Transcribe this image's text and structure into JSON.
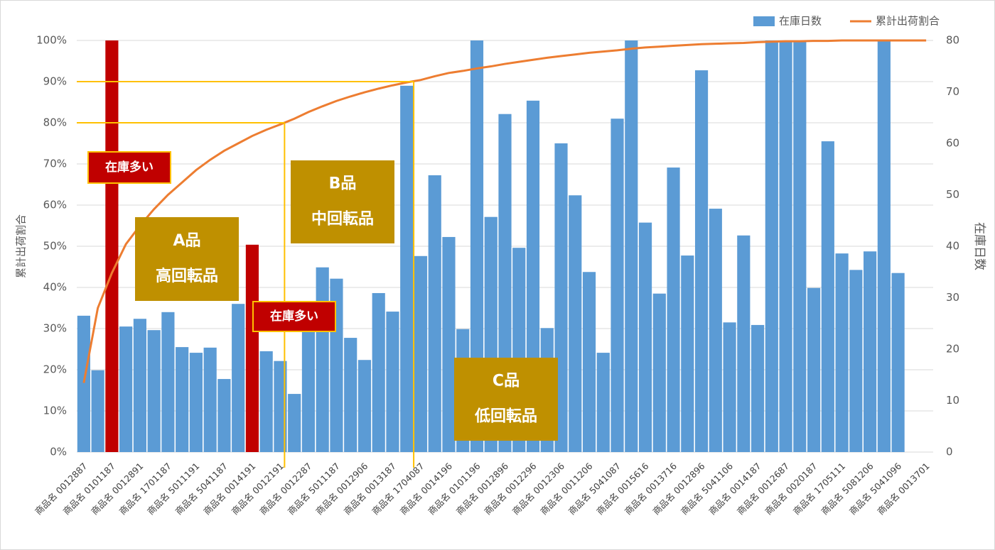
{
  "chart_data": {
    "type": "pareto",
    "categories": [
      "商品名 0012887",
      null,
      "商品名 0101187",
      null,
      "商品名 0012891",
      null,
      "商品名 1701187",
      null,
      "商品名 5011191",
      null,
      "商品名 5041187",
      null,
      "商品名 0014191",
      null,
      "商品名 0012191",
      null,
      "商品名 0012287",
      null,
      "商品名 5011187",
      null,
      "商品名 0012906",
      null,
      "商品名 0013187",
      null,
      "商品名 1704087",
      null,
      "商品名 0014196",
      null,
      "商品名 0101196",
      null,
      "商品名 0012896",
      null,
      "商品名 0012296",
      null,
      "商品名 0012306",
      null,
      "商品名 0011206",
      null,
      "商品名 5041087",
      null,
      "商品名 0015616",
      null,
      "商品名 0013716",
      null,
      "商品名 0012896",
      null,
      "商品名 5041106",
      null,
      "商品名 0014187",
      null,
      "商品名 0012687",
      null,
      "商品名 0020187",
      null,
      "商品名 1705111",
      null,
      "商品名 5081206",
      null,
      "商品名 5041096",
      null,
      "商品名 0013701"
    ],
    "series": [
      {
        "name": "在庫日数",
        "type": "bar",
        "axis": "y2",
        "color": "#5b9bd5",
        "highlight_indices": [
          2,
          12
        ],
        "highlight_color": "#c00000",
        "values": [
          26.5,
          15.9,
          80,
          24.4,
          25.9,
          23.7,
          27.2,
          20.4,
          19.3,
          20.3,
          14.2,
          28.8,
          40.3,
          19.6,
          17.7,
          11.3,
          24.5,
          35.9,
          33.7,
          22.2,
          17.9,
          30.9,
          27.3,
          71.2,
          38.1,
          53.8,
          41.8,
          23.9,
          80,
          45.7,
          65.7,
          39.7,
          68.3,
          24.1,
          60,
          49.9,
          35,
          19.3,
          64.8,
          80,
          44.6,
          30.8,
          55.3,
          38.2,
          74.2,
          47.3,
          25.2,
          42.1,
          24.7,
          80,
          80,
          80,
          31.9,
          60.4,
          38.6,
          35.4,
          39,
          80,
          34.8,
          null,
          null
        ]
      },
      {
        "name": "累計出荷割合",
        "type": "line",
        "axis": "y",
        "color": "#ed7d31",
        "values": [
          16.8,
          35,
          43.5,
          50.5,
          55,
          59,
          62.5,
          65.5,
          68.5,
          71,
          73.2,
          75,
          76.8,
          78.3,
          79.6,
          81,
          82.6,
          84,
          85.3,
          86.4,
          87.4,
          88.3,
          89.1,
          89.8,
          90.4,
          91.3,
          92.1,
          92.6,
          93.2,
          93.7,
          94.3,
          94.8,
          95.3,
          95.8,
          96.2,
          96.6,
          97,
          97.3,
          97.6,
          98,
          98.3,
          98.5,
          98.7,
          98.9,
          99.1,
          99.2,
          99.3,
          99.4,
          99.6,
          99.7,
          99.8,
          99.8,
          99.9,
          99.9,
          100,
          100,
          100,
          100,
          100,
          100,
          100
        ]
      }
    ],
    "ylabel": "累計出荷割合",
    "y2label": "在庫日数",
    "ylim": [
      0,
      100
    ],
    "yticks": [
      {
        "value": 0,
        "label": "0%"
      },
      {
        "value": 10,
        "label": "10%"
      },
      {
        "value": 20,
        "label": "20%"
      },
      {
        "value": 30,
        "label": "30%"
      },
      {
        "value": 40,
        "label": "40%"
      },
      {
        "value": 50,
        "label": "50%"
      },
      {
        "value": 60,
        "label": "60%"
      },
      {
        "value": 70,
        "label": "70%"
      },
      {
        "value": 80,
        "label": "80%"
      },
      {
        "value": 90,
        "label": "90%"
      },
      {
        "value": 100,
        "label": "100%"
      }
    ],
    "y2lim": [
      0,
      80
    ],
    "y2ticks": [
      0,
      10,
      20,
      30,
      40,
      50,
      60,
      70,
      80
    ],
    "grid": true,
    "legend": "top-right",
    "reference_lines": [
      {
        "y": 80,
        "x": 14.8,
        "color": "#ffc000"
      },
      {
        "y": 90,
        "x": 24,
        "color": "#ffc000"
      }
    ],
    "annotations": [
      {
        "lines": [
          "在庫多い"
        ],
        "style": "alert"
      },
      {
        "lines": [
          "在庫多い"
        ],
        "style": "alert"
      },
      {
        "lines": [
          "A品",
          "高回転品"
        ],
        "style": "class"
      },
      {
        "lines": [
          "B品",
          "中回転品"
        ],
        "style": "class"
      },
      {
        "lines": [
          "C品",
          "低回転品"
        ],
        "style": "class"
      }
    ]
  }
}
